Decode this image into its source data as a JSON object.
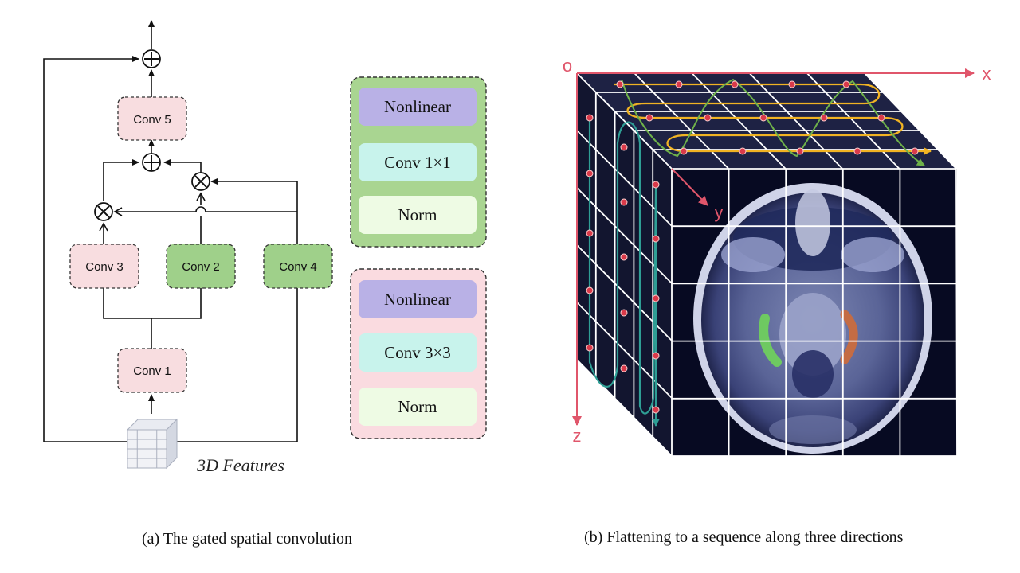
{
  "panel_a": {
    "boxes": {
      "conv5": "Conv 5",
      "conv3": "Conv 3",
      "conv2": "Conv 2",
      "conv4": "Conv 4",
      "conv1": "Conv 1"
    },
    "input_label": "3D  Features",
    "operators": {
      "add": "⊕",
      "multiply": "⊗"
    },
    "caption": "(a) The gated  spatial convolution"
  },
  "legend": {
    "green_block": [
      "Nonlinear",
      "Conv 1×1",
      "Norm"
    ],
    "pink_block": [
      "Nonlinear",
      "Conv 3×3",
      "Norm"
    ]
  },
  "panel_b": {
    "axes": {
      "origin": "o",
      "x": "x",
      "y": "y",
      "z": "z"
    },
    "caption": "(b) Flattening to a sequence along three directions"
  },
  "colors": {
    "pink_box": "#f8dde0",
    "green_box": "#9fd08a",
    "legend_green_bg": "#a9d591",
    "legend_pink_bg": "#fadbe0",
    "nonlinear": "#b9b1e6",
    "conv_cell": "#c8f3ec",
    "norm_cell": "#eefbe4",
    "axis": "#e0566b",
    "cube_dark": "#1e2244",
    "path_yellow": "#f1b323",
    "path_green": "#6fb24a",
    "path_teal": "#2f9e95"
  }
}
